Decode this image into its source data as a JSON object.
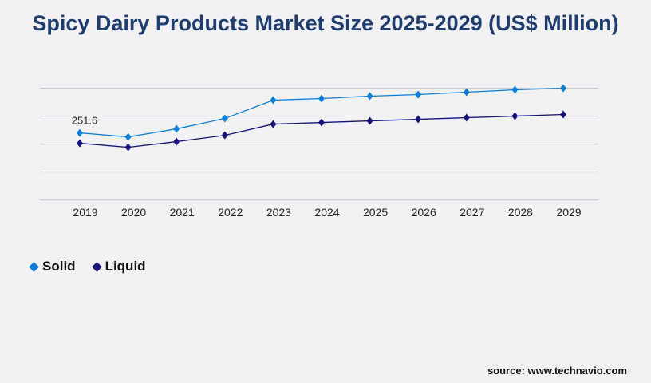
{
  "chart_data": {
    "type": "line",
    "title": "Spicy Dairy Products Market Size 2025-2029 (US$ Million)",
    "xlabel": "",
    "ylabel": "",
    "categories": [
      "2019",
      "2020",
      "2021",
      "2022",
      "2023",
      "2024",
      "2025",
      "2026",
      "2027",
      "2028",
      "2029"
    ],
    "series": [
      {
        "name": "Solid",
        "color": "#0a7ed6",
        "values": [
          251.6,
          236.6,
          266.6,
          305.5,
          374.4,
          380.4,
          389.4,
          395.4,
          404.4,
          413.3,
          419.3
        ]
      },
      {
        "name": "Liquid",
        "color": "#15137a",
        "values": [
          212.7,
          197.7,
          218.7,
          242.6,
          284.5,
          290.5,
          296.5,
          302.5,
          308.5,
          314.5,
          320.5
        ]
      }
    ],
    "data_labels": [
      {
        "series": "Solid",
        "category": "2019",
        "text": "251.6"
      }
    ],
    "ylim": [
      0,
      419.3
    ],
    "grid": true,
    "gridlines": 5,
    "legend_position": "bottom-left"
  },
  "source": "source: www.technavio.com"
}
